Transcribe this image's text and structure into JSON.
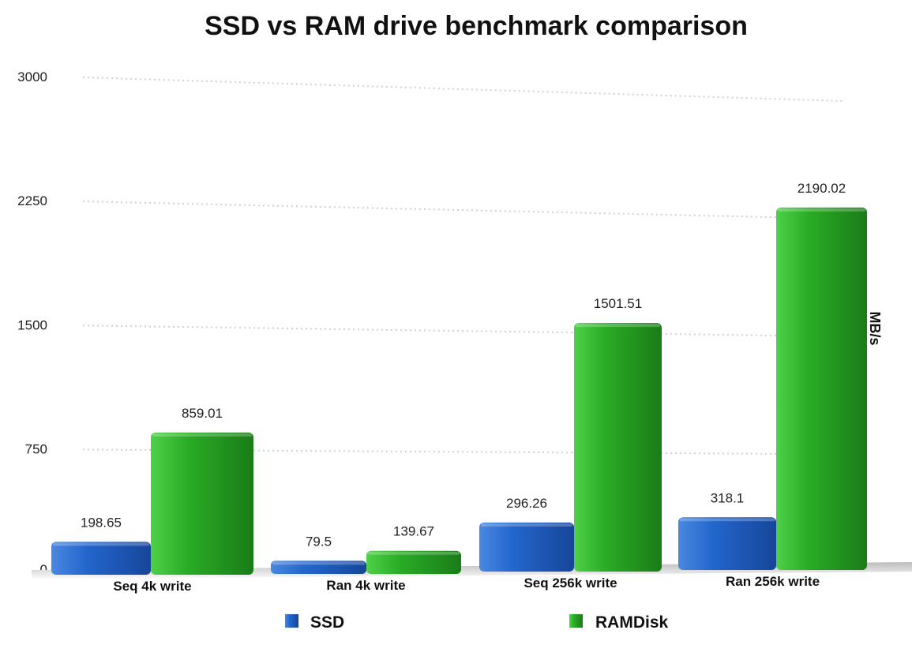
{
  "chart_data": {
    "type": "bar",
    "title": "SSD vs RAM drive benchmark comparison",
    "xlabel": "",
    "ylabel": "MB/s",
    "ylim": [
      0,
      3000
    ],
    "yticks": [
      0,
      750,
      1500,
      2250,
      3000
    ],
    "grid": true,
    "legend_position": "bottom",
    "categories": [
      "Seq 4k write",
      "Ran 4k write",
      "Seq 256k write",
      "Ran 256k write"
    ],
    "series": [
      {
        "name": "SSD",
        "color": "#1f5fc4",
        "values": [
          198.65,
          79.5,
          296.26,
          318.1
        ],
        "labels": [
          "198.65",
          "79.5",
          "296.26",
          "318.1"
        ]
      },
      {
        "name": "RAMDisk",
        "color": "#24a322",
        "values": [
          859.01,
          139.67,
          1501.51,
          2190.02
        ],
        "labels": [
          "859.01",
          "139.67",
          "1501.51",
          "2190.02"
        ]
      }
    ]
  }
}
